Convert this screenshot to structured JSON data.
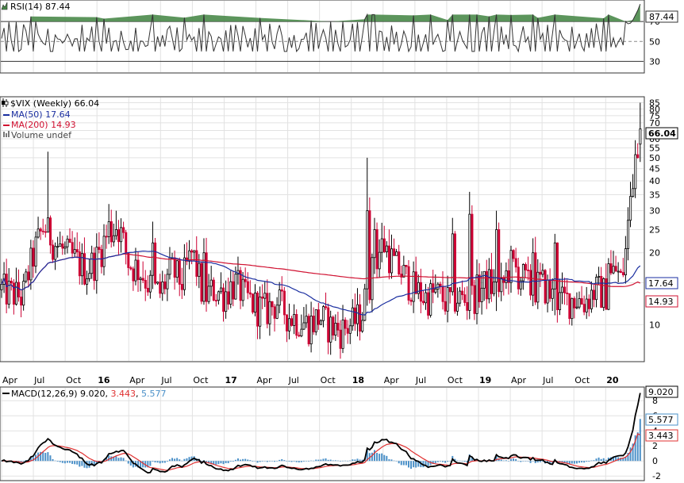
{
  "colors": {
    "frame": "#333333",
    "grid": "#e2e2e2",
    "up": "#000000",
    "down": "#cc0033",
    "ma50": "#1a2ea0",
    "ma200": "#d01030",
    "rsi_line": "#333333",
    "rsi_fill": "#4a8a4a",
    "macd_line": "#000000",
    "macd_signal": "#e03030",
    "macd_hist": "#4a90c8"
  },
  "rsi": {
    "title": "RSI(14) 87.44",
    "icon": "area-chart-icon",
    "value_badge": "87.44",
    "ticks": [
      "70",
      "50",
      "30"
    ],
    "levels": [
      30,
      50,
      70
    ]
  },
  "price": {
    "title": "$VIX (Weekly) 66.04",
    "icon": "candlestick-icon",
    "ma50_legend": "MA(50) 17.64",
    "ma200_legend": "MA(200) 14.93",
    "volume_legend": "Volume undef",
    "value_badge": "66.04",
    "ma50_badge": "17.64",
    "ma200_badge": "14.93",
    "ticks": [
      "85",
      "80",
      "75",
      "70",
      "65",
      "60",
      "55",
      "50",
      "45",
      "40",
      "35",
      "30",
      "25",
      "20",
      "15",
      "10"
    ]
  },
  "time_axis": {
    "labels": [
      "Apr",
      "Jul",
      "Oct",
      "16",
      "Apr",
      "Jul",
      "Oct",
      "17",
      "Apr",
      "Jul",
      "Oct",
      "18",
      "Apr",
      "Jul",
      "Oct",
      "19",
      "Apr",
      "Jul",
      "Oct",
      "20"
    ]
  },
  "macd": {
    "title_prefix": "MACD(12,26,9)",
    "macd_value": "9.020",
    "signal_value": "3.443",
    "hist_value": "5.577",
    "ticks": [
      "8",
      "6",
      "4",
      "2",
      "0",
      "-2"
    ]
  },
  "chart_data": {
    "type": "candlestick",
    "title": "$VIX (Weekly) 66.04",
    "scale": "log",
    "ylim": [
      7,
      90
    ],
    "time_range": [
      "2015-04",
      "2020-03"
    ],
    "key_points": [
      {
        "date": "2015-08",
        "high": 53,
        "close": 28
      },
      {
        "date": "2016-02",
        "close": 24
      },
      {
        "date": "2016-06",
        "close": 26
      },
      {
        "date": "2016-11",
        "close": 22
      },
      {
        "date": "2017-10",
        "low": 9
      },
      {
        "date": "2018-02",
        "high": 50,
        "close": 30
      },
      {
        "date": "2018-10",
        "close": 25
      },
      {
        "date": "2018-12",
        "high": 36,
        "close": 29
      },
      {
        "date": "2019-05",
        "close": 20
      },
      {
        "date": "2019-08",
        "close": 22
      },
      {
        "date": "2020-03",
        "high": 85,
        "close": 66.04
      }
    ],
    "last_close": 66.04,
    "ma50_last": 17.64,
    "ma200_last": 14.93,
    "rsi_last": 87.44,
    "macd_last": 9.02,
    "signal_last": 3.443,
    "histogram_last": 5.577,
    "grid": true
  }
}
